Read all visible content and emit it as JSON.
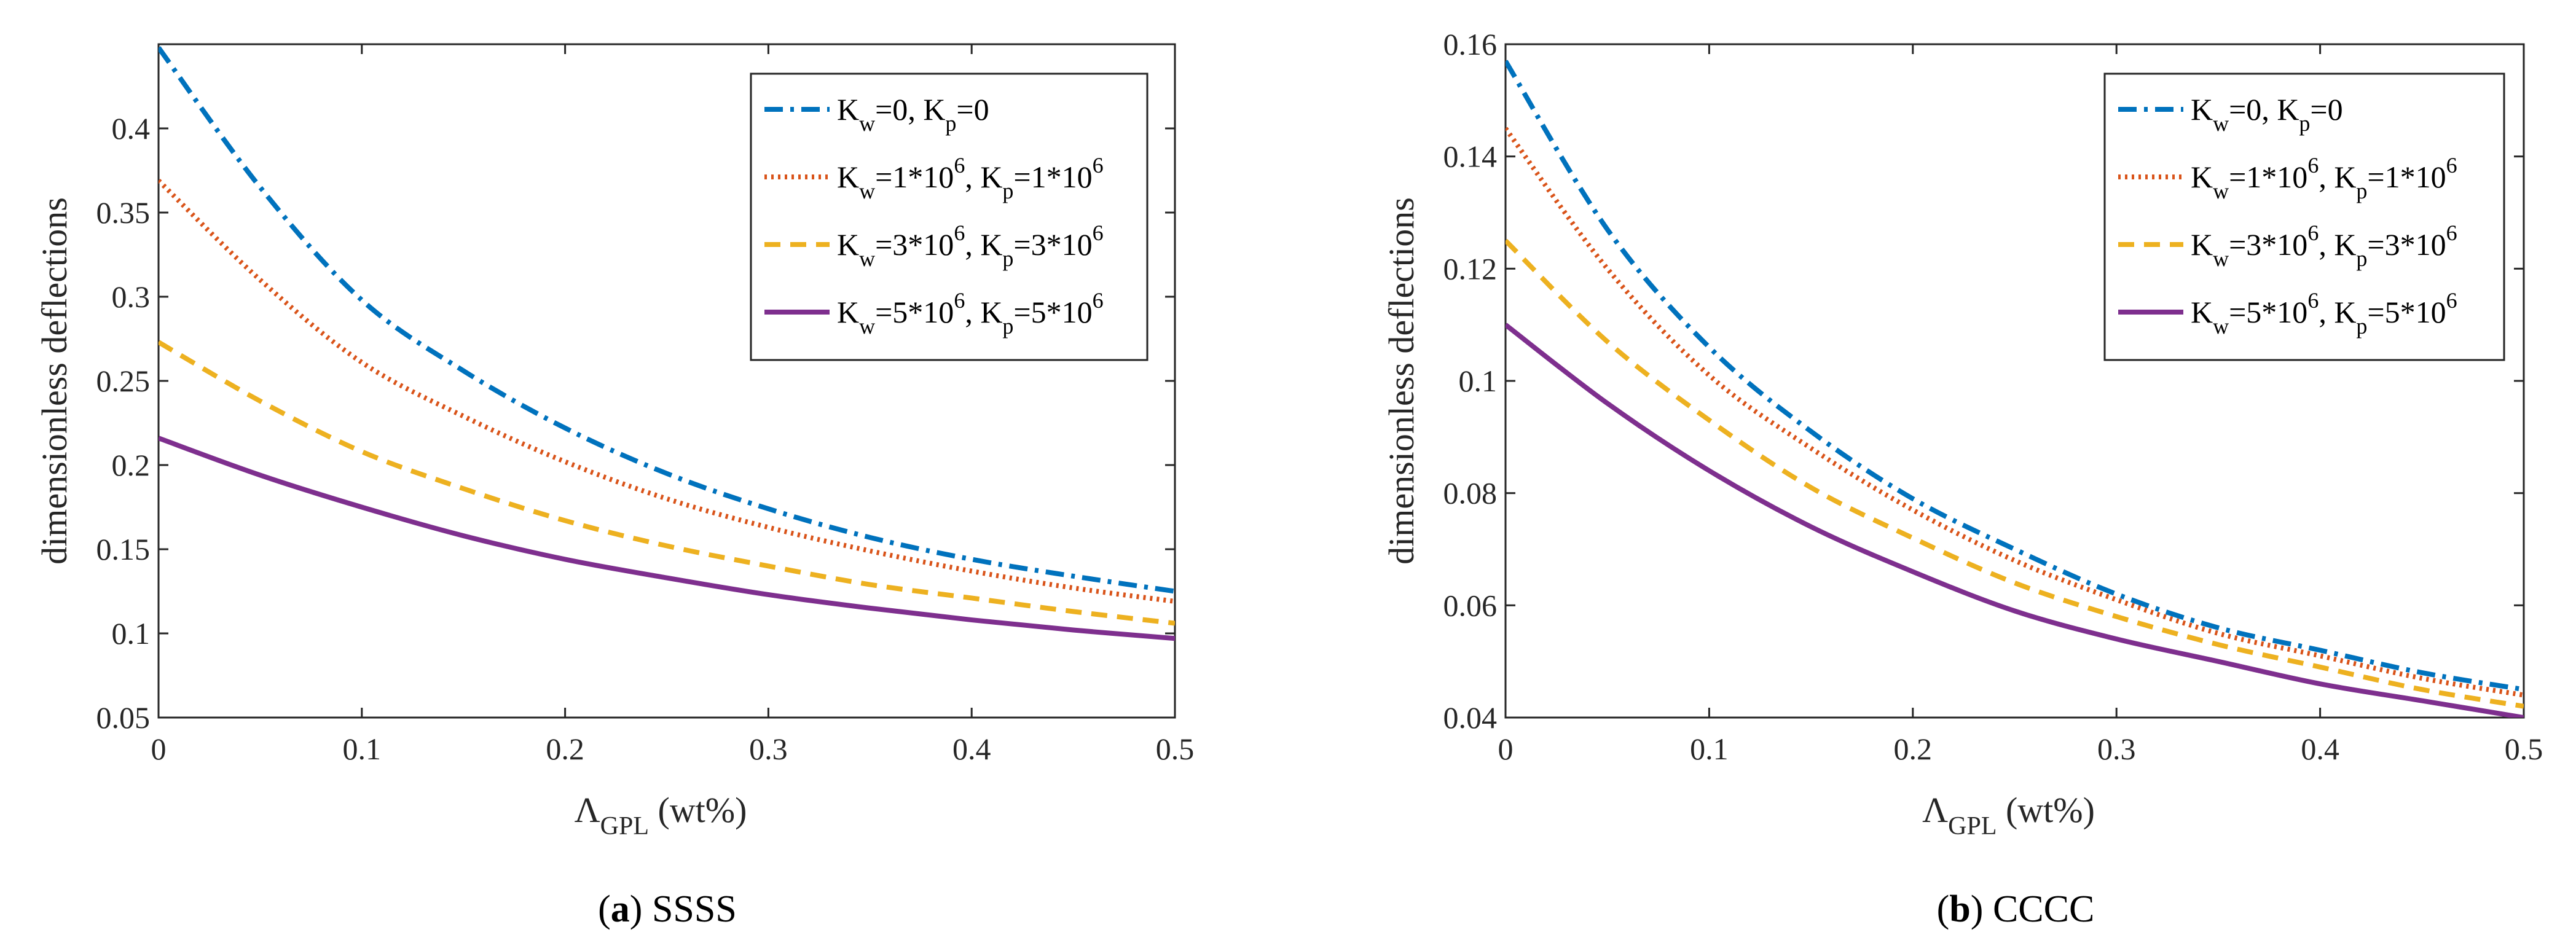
{
  "chart_data": [
    {
      "type": "line",
      "caption_letter": "a",
      "caption_text": "SSSS",
      "xlabel_main": "Λ",
      "xlabel_sub": "GPL",
      "xlabel_suffix": " (wt%)",
      "ylabel": "dimensionless deflections",
      "xlim": [
        0,
        0.5
      ],
      "ylim": [
        0.05,
        0.45
      ],
      "xticks": [
        0,
        0.1,
        0.2,
        0.3,
        0.4,
        0.5
      ],
      "xtick_labels": [
        "0",
        "0.1",
        "0.2",
        "0.3",
        "0.4",
        "0.5"
      ],
      "yticks": [
        0.05,
        0.1,
        0.15,
        0.2,
        0.25,
        0.3,
        0.35,
        0.4
      ],
      "ytick_labels": [
        "0.05",
        "0.1",
        "0.15",
        "0.2",
        "0.25",
        "0.3",
        "0.35",
        "0.4"
      ],
      "x": [
        0,
        0.05,
        0.1,
        0.15,
        0.2,
        0.25,
        0.3,
        0.35,
        0.4,
        0.45,
        0.5
      ],
      "series": [
        {
          "name": "Kw=0, Kp=0",
          "legend": {
            "kw": "=0",
            "kp": "=0"
          },
          "color": "#0072BD",
          "dash": "dashdot",
          "values": [
            0.448,
            0.365,
            0.298,
            0.256,
            0.222,
            0.195,
            0.174,
            0.157,
            0.144,
            0.134,
            0.125
          ]
        },
        {
          "name": "Kw=1*10^6, Kp=1*10^6",
          "legend": {
            "kw": "=1*10",
            "kp": "=1*10",
            "exp": "6"
          },
          "color": "#D95319",
          "dash": "dotted",
          "values": [
            0.369,
            0.31,
            0.261,
            0.229,
            0.202,
            0.18,
            0.163,
            0.149,
            0.137,
            0.127,
            0.119
          ]
        },
        {
          "name": "Kw=3*10^6, Kp=3*10^6",
          "legend": {
            "kw": "=3*10",
            "kp": "=3*10",
            "exp": "6"
          },
          "color": "#EDB120",
          "dash": "dashed",
          "values": [
            0.273,
            0.238,
            0.208,
            0.186,
            0.167,
            0.152,
            0.14,
            0.129,
            0.121,
            0.113,
            0.106
          ]
        },
        {
          "name": "Kw=5*10^6, Kp=5*10^6",
          "legend": {
            "kw": "=5*10",
            "kp": "=5*10",
            "exp": "6"
          },
          "color": "#7E2F8E",
          "dash": "solid",
          "values": [
            0.216,
            0.194,
            0.175,
            0.158,
            0.144,
            0.133,
            0.123,
            0.115,
            0.108,
            0.102,
            0.097
          ]
        }
      ],
      "legend_position": "top-right"
    },
    {
      "type": "line",
      "caption_letter": "b",
      "caption_text": "CCCC",
      "xlabel_main": "Λ",
      "xlabel_sub": "GPL",
      "xlabel_suffix": " (wt%)",
      "ylabel": "dimensionless deflections",
      "xlim": [
        0,
        0.5
      ],
      "ylim": [
        0.04,
        0.16
      ],
      "xticks": [
        0,
        0.1,
        0.2,
        0.3,
        0.4,
        0.5
      ],
      "xtick_labels": [
        "0",
        "0.1",
        "0.2",
        "0.3",
        "0.4",
        "0.5"
      ],
      "yticks": [
        0.04,
        0.06,
        0.08,
        0.1,
        0.12,
        0.14,
        0.16
      ],
      "ytick_labels": [
        "0.04",
        "0.06",
        "0.08",
        "0.1",
        "0.12",
        "0.14",
        "0.16"
      ],
      "x": [
        0,
        0.05,
        0.1,
        0.15,
        0.2,
        0.25,
        0.3,
        0.35,
        0.4,
        0.45,
        0.5
      ],
      "series": [
        {
          "name": "Kw=0, Kp=0",
          "legend": {
            "kw": "=0",
            "kp": "=0"
          },
          "color": "#0072BD",
          "dash": "dashdot",
          "values": [
            0.157,
            0.127,
            0.106,
            0.091,
            0.079,
            0.07,
            0.062,
            0.056,
            0.052,
            0.048,
            0.045
          ]
        },
        {
          "name": "Kw=1*10^6, Kp=1*10^6",
          "legend": {
            "kw": "=1*10",
            "kp": "=1*10",
            "exp": "6"
          },
          "color": "#D95319",
          "dash": "dotted",
          "values": [
            0.145,
            0.12,
            0.101,
            0.088,
            0.077,
            0.068,
            0.061,
            0.055,
            0.051,
            0.047,
            0.044
          ]
        },
        {
          "name": "Kw=3*10^6, Kp=3*10^6",
          "legend": {
            "kw": "=3*10",
            "kp": "=3*10",
            "exp": "6"
          },
          "color": "#EDB120",
          "dash": "dashed",
          "values": [
            0.125,
            0.107,
            0.093,
            0.081,
            0.072,
            0.064,
            0.058,
            0.053,
            0.049,
            0.045,
            0.042
          ]
        },
        {
          "name": "Kw=5*10^6, Kp=5*10^6",
          "legend": {
            "kw": "=5*10",
            "kp": "=5*10",
            "exp": "6"
          },
          "color": "#7E2F8E",
          "dash": "solid",
          "values": [
            0.11,
            0.096,
            0.084,
            0.074,
            0.066,
            0.059,
            0.054,
            0.05,
            0.046,
            0.043,
            0.04
          ]
        }
      ],
      "legend_position": "top-right"
    }
  ]
}
